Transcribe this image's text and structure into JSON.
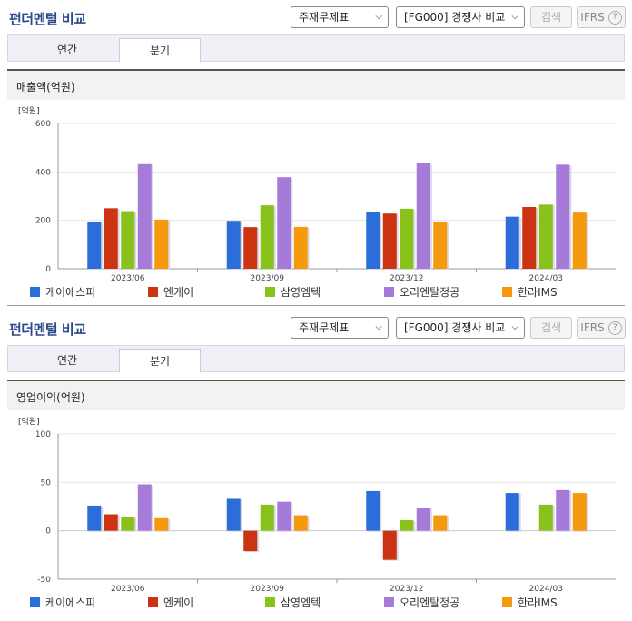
{
  "sections": [
    {
      "title": "펀더멘털 비교",
      "select1": "주재무제표",
      "select2": "[FG000] 경쟁사 비교",
      "search_label": "검색",
      "ifrs_label": "IFRS",
      "ifrs_help": "?",
      "tabs": [
        {
          "label": "연간",
          "active": false
        },
        {
          "label": "분기",
          "active": true
        }
      ],
      "panel_title": "매출액(억원)",
      "unit": "[억원]"
    },
    {
      "title": "펀더멘털 비교",
      "select1": "주재무제표",
      "select2": "[FG000] 경쟁사 비교",
      "search_label": "검색",
      "ifrs_label": "IFRS",
      "ifrs_help": "?",
      "tabs": [
        {
          "label": "연간",
          "active": false
        },
        {
          "label": "분기",
          "active": true
        }
      ],
      "panel_title": "영업이익(억원)",
      "unit": "[억원]"
    }
  ],
  "chart_data": [
    {
      "type": "bar",
      "title": "매출액(억원)",
      "categories": [
        "2023/06",
        "2023/09",
        "2023/12",
        "2024/03"
      ],
      "ylim": [
        0,
        600
      ],
      "yticks": [
        0,
        200,
        400,
        600
      ],
      "grid": true,
      "legend": "bottom",
      "series": [
        {
          "name": "케이에스피",
          "color": "#2b6ed9",
          "values": [
            195,
            198,
            233,
            215
          ]
        },
        {
          "name": "엔케이",
          "color": "#cc3311",
          "values": [
            250,
            172,
            228,
            255
          ]
        },
        {
          "name": "삼영엠텍",
          "color": "#88c21a",
          "values": [
            238,
            262,
            248,
            265
          ]
        },
        {
          "name": "오리엔탈정공",
          "color": "#a57ad8",
          "values": [
            432,
            378,
            437,
            430
          ]
        },
        {
          "name": "한라IMS",
          "color": "#f59a0c",
          "values": [
            203,
            173,
            192,
            232
          ]
        }
      ]
    },
    {
      "type": "bar",
      "title": "영업이익(억원)",
      "categories": [
        "2023/06",
        "2023/09",
        "2023/12",
        "2024/03"
      ],
      "ylim": [
        -50,
        100
      ],
      "yticks": [
        -50,
        0,
        50,
        100
      ],
      "grid": true,
      "legend": "bottom",
      "series": [
        {
          "name": "케이에스피",
          "color": "#2b6ed9",
          "values": [
            26,
            33,
            41,
            39
          ]
        },
        {
          "name": "엔케이",
          "color": "#cc3311",
          "values": [
            17,
            -21,
            -30,
            null
          ]
        },
        {
          "name": "삼영엠텍",
          "color": "#88c21a",
          "values": [
            14,
            27,
            11,
            27
          ]
        },
        {
          "name": "오리엔탈정공",
          "color": "#a57ad8",
          "values": [
            48,
            30,
            24,
            42
          ]
        },
        {
          "name": "한라IMS",
          "color": "#f59a0c",
          "values": [
            13,
            16,
            16,
            39
          ]
        }
      ]
    }
  ]
}
